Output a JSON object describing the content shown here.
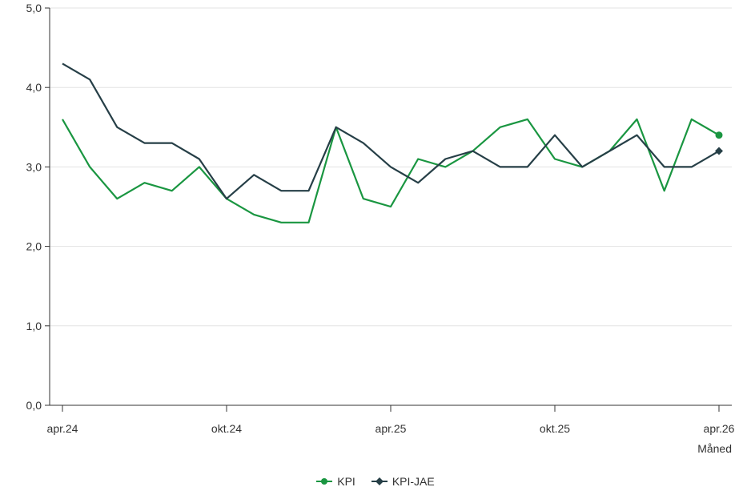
{
  "chart_data": {
    "type": "line",
    "xlabel": "Måned",
    "ylabel": "",
    "ylim": [
      0,
      5
    ],
    "y_ticks": [
      "0,0",
      "1,0",
      "2,0",
      "3,0",
      "4,0",
      "5,0"
    ],
    "x_tick_labels": [
      {
        "index": 0,
        "label": "apr.24"
      },
      {
        "index": 6,
        "label": "okt.24"
      },
      {
        "index": 12,
        "label": "apr.25"
      },
      {
        "index": 18,
        "label": "okt.25"
      },
      {
        "index": 24,
        "label": "apr.26"
      }
    ],
    "categories": [
      "apr.24",
      "mai.24",
      "jun.24",
      "jul.24",
      "aug.24",
      "sep.24",
      "okt.24",
      "nov.24",
      "des.24",
      "jan.25",
      "feb.25",
      "mar.25",
      "apr.25",
      "mai.25",
      "jun.25",
      "jul.25",
      "aug.25",
      "sep.25",
      "okt.25",
      "nov.25",
      "des.25",
      "jan.26",
      "feb.26",
      "mar.26",
      "apr.26"
    ],
    "grid": true,
    "legend_position": "bottom-center",
    "series": [
      {
        "name": "KPI",
        "color": "#1a9641",
        "marker": "circle",
        "values": [
          3.6,
          3.0,
          2.6,
          2.8,
          2.7,
          3.0,
          2.6,
          2.4,
          2.3,
          2.3,
          3.5,
          2.6,
          2.5,
          3.1,
          3.0,
          3.2,
          3.5,
          3.6,
          3.1,
          3.0,
          3.2,
          3.6,
          2.7,
          3.6,
          3.4
        ]
      },
      {
        "name": "KPI-JAE",
        "color": "#263f47",
        "marker": "diamond",
        "values": [
          4.3,
          4.1,
          3.5,
          3.3,
          3.3,
          3.1,
          2.6,
          2.9,
          2.7,
          2.7,
          3.5,
          3.3,
          3.0,
          2.8,
          3.1,
          3.2,
          3.0,
          3.0,
          3.4,
          3.0,
          3.2,
          3.4,
          3.0,
          3.0,
          3.2
        ]
      }
    ]
  }
}
